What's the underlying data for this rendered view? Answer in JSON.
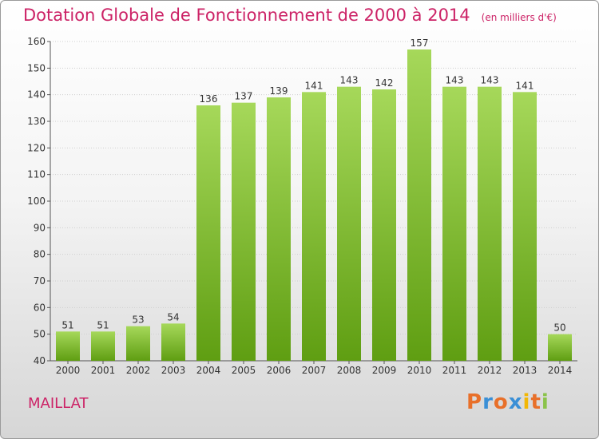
{
  "header": {
    "title": "Dotation Globale de Fonctionnement de 2000 à 2014",
    "unit": "(en milliers d'€)"
  },
  "footer": {
    "commune": "MAILLAT",
    "logo_text": "Proxiti",
    "logo_colors": [
      "#e8702a",
      "#3a8fd6",
      "#e8702a",
      "#3a8fd6",
      "#f2b705",
      "#e8702a",
      "#8bc34a"
    ]
  },
  "colors": {
    "bar_light": "#a6d85a",
    "bar_dark": "#5f9e12",
    "title": "#cc2266"
  },
  "chart_data": {
    "type": "bar",
    "title": "Dotation Globale de Fonctionnement de 2000 à 2014",
    "categories": [
      "2000",
      "2001",
      "2002",
      "2003",
      "2004",
      "2005",
      "2006",
      "2007",
      "2008",
      "2009",
      "2010",
      "2011",
      "2012",
      "2013",
      "2014"
    ],
    "values": [
      51,
      51,
      53,
      54,
      136,
      137,
      139,
      141,
      143,
      142,
      157,
      143,
      143,
      141,
      50
    ],
    "ylim": [
      40,
      160
    ],
    "yticks": [
      40,
      50,
      60,
      70,
      80,
      90,
      100,
      110,
      120,
      130,
      140,
      150,
      160
    ],
    "grid": true,
    "xlabel": "",
    "ylabel": ""
  }
}
